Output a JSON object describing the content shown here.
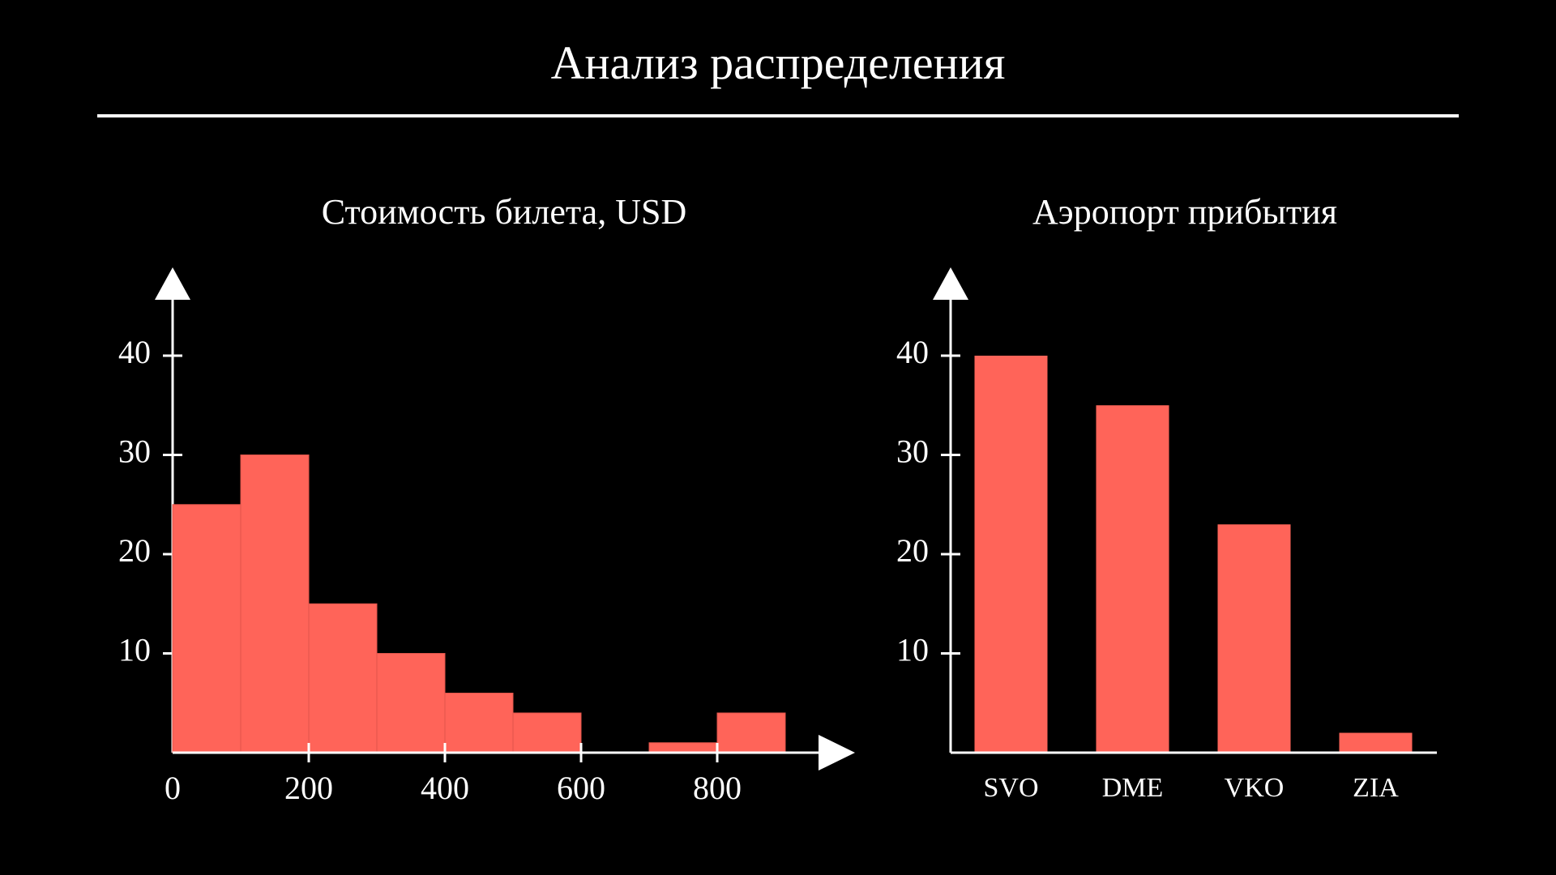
{
  "page": {
    "title": "Анализ распределения"
  },
  "colors": {
    "background": "#000000",
    "bar": "#ff6459",
    "axis": "#ffffff",
    "text": "#ffffff"
  },
  "chart_data": [
    {
      "type": "histogram",
      "title": "Стоимость билета, USD",
      "bin_edges": [
        0,
        100,
        200,
        300,
        400,
        500,
        600,
        700,
        800,
        900
      ],
      "values": [
        25,
        30,
        15,
        10,
        6,
        4,
        0,
        1,
        4
      ],
      "x_ticks": [
        0,
        200,
        400,
        600,
        800
      ],
      "y_ticks": [
        10,
        20,
        30,
        40
      ],
      "xlim": [
        0,
        1000
      ],
      "ylim": [
        0,
        46
      ],
      "xlabel": "",
      "ylabel": "",
      "grid": false
    },
    {
      "type": "bar",
      "title": "Аэропорт прибытия",
      "categories": [
        "SVO",
        "DME",
        "VKO",
        "ZIA"
      ],
      "values": [
        40,
        35,
        23,
        2
      ],
      "y_ticks": [
        10,
        20,
        30,
        40
      ],
      "ylim": [
        0,
        46
      ],
      "xlabel": "",
      "ylabel": "",
      "grid": false
    }
  ]
}
